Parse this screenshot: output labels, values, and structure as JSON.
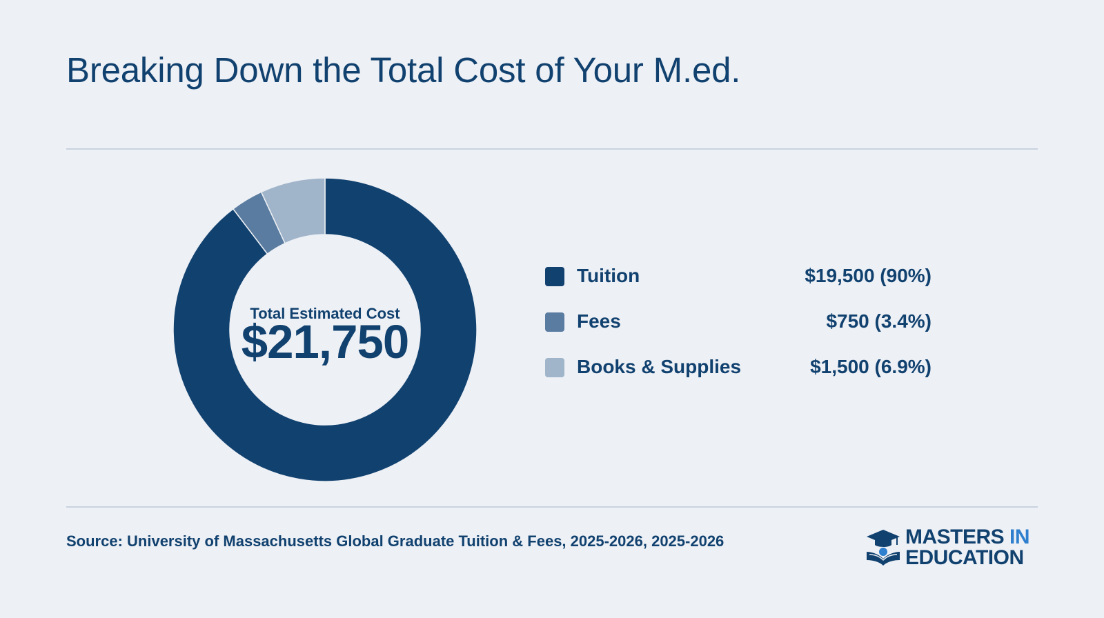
{
  "title": "Breaking Down the Total Cost of Your M.ed.",
  "chart_data": {
    "type": "pie",
    "variant": "donut",
    "center_label": "Total Estimated Cost",
    "center_value": "$21,750",
    "categories": [
      "Tuition",
      "Fees",
      "Books & Supplies"
    ],
    "values": [
      19500,
      750,
      1500
    ],
    "value_labels": [
      "$19,500 (90%)",
      "$750 (3.4%)",
      "$1,500 (6.9%)"
    ],
    "colors": [
      "#11416f",
      "#5a7ca0",
      "#a0b4ca"
    ],
    "legend_position": "right"
  },
  "source": "Source: University of Massachusetts Global Graduate Tuition & Fees, 2025-2026, 2025-2026",
  "logo": {
    "line1_main": "MASTERS",
    "line1_accent": "IN",
    "line2": "EDUCATION",
    "icon": "graduation-cap-book-icon"
  }
}
